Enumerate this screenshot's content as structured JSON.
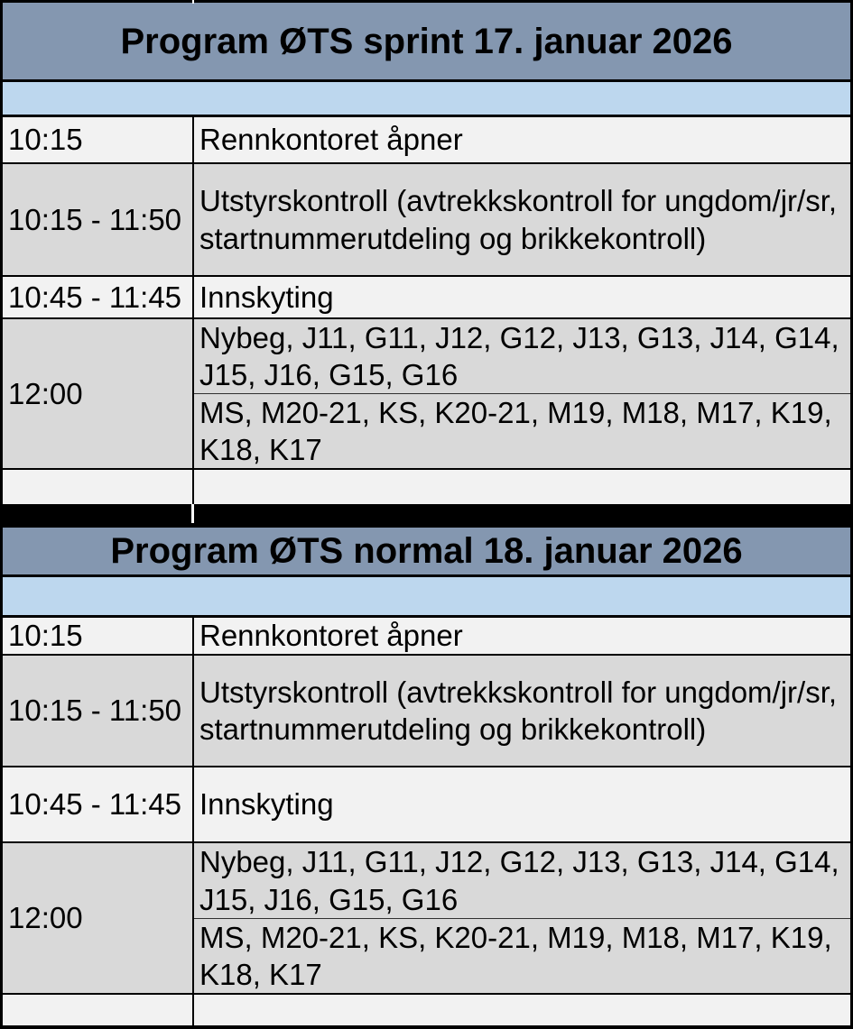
{
  "colors": {
    "title_bg": "#8497B0",
    "spacer_bg": "#BDD7EE",
    "row_light_bg": "#F2F2F2",
    "row_gray_bg": "#D9D9D9",
    "border": "#000000"
  },
  "tables": [
    {
      "title": "Program ØTS sprint 17. januar 2026",
      "rows": [
        {
          "time": "10:15",
          "desc": "Rennkontoret åpner"
        },
        {
          "time": "10:15 - 11:50",
          "desc": "Utstyrskontroll (avtrekkskontroll for ungdom/jr/sr, startnummerutdeling og brikkekontroll)"
        },
        {
          "time": "10:45 - 11:45",
          "desc": "Innskyting"
        },
        {
          "time": "12:00",
          "group1": "Nybeg, J11, G11, J12, G12, J13, G13, J14, G14, J15, J16, G15, G16",
          "group2": "MS, M20-21, KS, K20-21, M19, M18, M17, K19, K18, K17"
        },
        {
          "time": "",
          "desc": ""
        }
      ]
    },
    {
      "title": "Program ØTS normal 18. januar 2026",
      "rows": [
        {
          "time": "10:15",
          "desc": "Rennkontoret åpner"
        },
        {
          "time": "10:15 - 11:50",
          "desc": "Utstyrskontroll (avtrekkskontroll for ungdom/jr/sr, startnummerutdeling og brikkekontroll)"
        },
        {
          "time": "10:45 - 11:45",
          "desc": "Innskyting"
        },
        {
          "time": "12:00",
          "group1": "Nybeg, J11, G11, J12, G12, J13, G13, J14, G14, J15, J16, G15, G16",
          "group2": "MS, M20-21, KS, K20-21, M19, M18, M17, K19, K18, K17"
        },
        {
          "time": "",
          "desc": ""
        }
      ]
    }
  ]
}
